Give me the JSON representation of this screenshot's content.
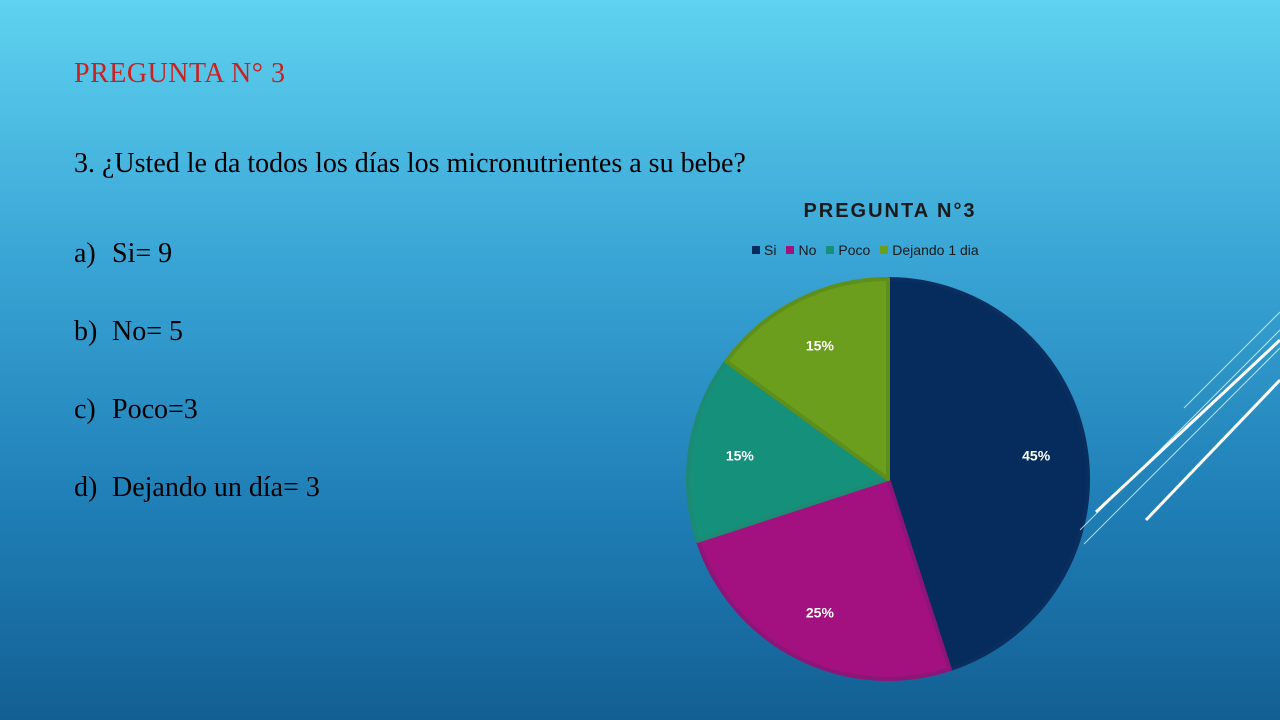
{
  "slide": {
    "title": "PREGUNTA N° 3",
    "title_color": "#cc1f1f",
    "question": "3. ¿Usted le da todos los días los micronutrientes a su bebe?",
    "options": [
      {
        "letter": "a)",
        "text": "Si= 9"
      },
      {
        "letter": "b)",
        "text": "No= 5"
      },
      {
        "letter": "c)",
        "text": "Poco=3"
      },
      {
        "letter": "d)",
        "text": "Dejando un día= 3"
      }
    ]
  },
  "chart_data": {
    "type": "pie",
    "title": "PREGUNTA N°3",
    "legend_position": "top",
    "categories": [
      "Si",
      "No",
      "Poco",
      "Dejando 1 dia"
    ],
    "values": [
      45,
      25,
      15,
      15
    ],
    "labels": [
      "45%",
      "25%",
      "15%",
      "15%"
    ],
    "colors": [
      "#052c5c",
      "#a31080",
      "#15907a",
      "#6a9e1c"
    ],
    "border_colors": [
      "#0a2f5e",
      "#8c1677",
      "#1d8a73",
      "#5e8f1a"
    ]
  }
}
